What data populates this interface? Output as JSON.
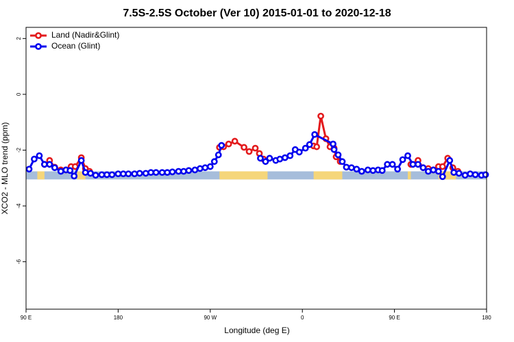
{
  "chart_data": {
    "type": "line",
    "title": "7.5S-2.5S October (Ver 10)   2015-01-01 to 2020-12-18",
    "x_label": "Longitude (deg E)",
    "y_label": "XCO2 - MLO trend (ppm)",
    "xlim": [
      90,
      540
    ],
    "ylim": [
      -7.7,
      2.4
    ],
    "xticks": [
      {
        "value": 90,
        "label": "90 E"
      },
      {
        "value": 180,
        "label": "180"
      },
      {
        "value": 270,
        "label": "90 W"
      },
      {
        "value": 360,
        "label": "0"
      },
      {
        "value": 450,
        "label": "90 E"
      },
      {
        "value": 540,
        "label": "180"
      }
    ],
    "yticks": [
      2,
      0,
      -2,
      -4,
      -6
    ],
    "legend": "top-left",
    "surface_band": {
      "ylim": [
        -3.05,
        -2.76
      ],
      "ocean_color": "#a6bddb",
      "land_color": "#f5d67a",
      "land": [
        [
          101,
          108
        ],
        [
          140,
          148
        ],
        [
          279,
          326
        ],
        [
          371,
          399
        ],
        [
          463,
          466
        ],
        [
          493,
          510
        ]
      ]
    },
    "series": [
      {
        "name": "Land (Nadir&Glint)",
        "color": "#e31a1c",
        "x": [
          108,
          113,
          118,
          124,
          129,
          134,
          138,
          144,
          148,
          152,
          null,
          279,
          283,
          288,
          294,
          303,
          308,
          314,
          318,
          322,
          null,
          371,
          374,
          378,
          383,
          387,
          391,
          393,
          397,
          null,
          466,
          473,
          478,
          483,
          488,
          493,
          497,
          502,
          507,
          512
        ],
        "values": [
          -2.51,
          -2.37,
          -2.61,
          -2.71,
          -2.71,
          -2.59,
          -2.59,
          -2.27,
          -2.66,
          -2.76,
          null,
          -1.9,
          -1.88,
          -1.78,
          -1.68,
          -1.9,
          -2.05,
          -1.93,
          -2.12,
          -2.32,
          null,
          -1.85,
          -1.88,
          -0.78,
          -1.59,
          -1.88,
          -1.93,
          -2.24,
          -2.41,
          null,
          -2.51,
          -2.37,
          -2.63,
          -2.66,
          -2.71,
          -2.59,
          -2.59,
          -2.29,
          -2.63,
          -2.76
        ]
      },
      {
        "name": "Ocean (Glint)",
        "color": "#0000ee",
        "x": [
          93,
          98,
          103,
          108,
          113,
          118,
          124,
          129,
          133,
          137,
          144,
          148,
          153,
          158,
          164,
          169,
          174,
          180,
          185,
          190,
          196,
          201,
          207,
          212,
          217,
          223,
          228,
          233,
          239,
          244,
          249,
          255,
          260,
          265,
          270,
          274,
          278,
          281,
          null,
          319,
          324,
          328,
          334,
          338,
          343,
          348,
          353,
          357,
          363,
          367,
          372,
          390,
          391,
          395,
          399,
          403,
          408,
          413,
          418,
          424,
          429,
          434,
          438,
          443,
          448,
          453,
          458,
          463,
          468,
          473,
          478,
          483,
          488,
          493,
          497,
          504,
          508,
          513,
          519,
          524,
          529,
          535,
          539
        ],
        "values": [
          -2.68,
          -2.32,
          -2.2,
          -2.51,
          -2.51,
          -2.63,
          -2.76,
          -2.71,
          -2.73,
          -2.93,
          -2.37,
          -2.8,
          -2.83,
          -2.9,
          -2.88,
          -2.88,
          -2.88,
          -2.85,
          -2.85,
          -2.85,
          -2.85,
          -2.83,
          -2.83,
          -2.8,
          -2.8,
          -2.8,
          -2.8,
          -2.78,
          -2.76,
          -2.76,
          -2.73,
          -2.71,
          -2.66,
          -2.63,
          -2.59,
          -2.41,
          -2.17,
          -1.83,
          null,
          -2.29,
          -2.41,
          -2.29,
          -2.37,
          -2.32,
          -2.27,
          -2.2,
          -1.98,
          -2.07,
          -1.93,
          -1.8,
          -1.44,
          -1.78,
          -1.98,
          -2.17,
          -2.41,
          -2.61,
          -2.63,
          -2.68,
          -2.76,
          -2.71,
          -2.73,
          -2.71,
          -2.73,
          -2.51,
          -2.51,
          -2.68,
          -2.34,
          -2.2,
          -2.51,
          -2.51,
          -2.63,
          -2.76,
          -2.71,
          -2.76,
          -2.95,
          -2.37,
          -2.8,
          -2.83,
          -2.9,
          -2.85,
          -2.88,
          -2.9,
          -2.88
        ]
      }
    ]
  }
}
